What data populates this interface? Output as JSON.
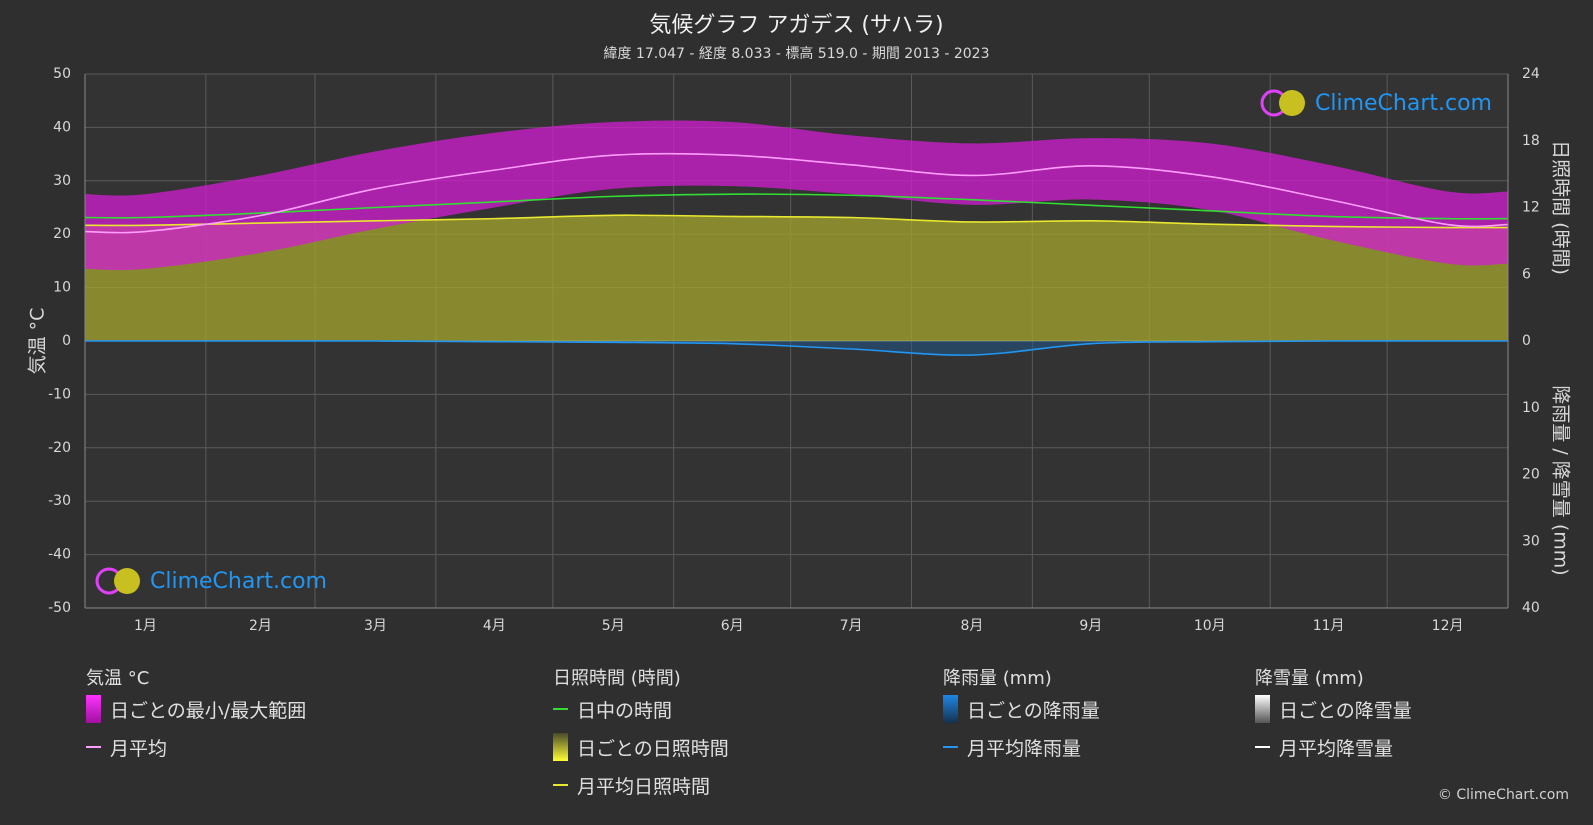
{
  "header": {
    "title": "気候グラフ アガデス (サハラ)",
    "subtitle": "緯度 17.047 - 経度 8.033 - 標高 519.0 - 期間 2013 - 2023"
  },
  "chart_data": {
    "type": "area",
    "categories": [
      "1月",
      "2月",
      "3月",
      "4月",
      "5月",
      "6月",
      "7月",
      "8月",
      "9月",
      "10月",
      "11月",
      "12月"
    ],
    "axes": {
      "left": {
        "label": "気温 °C",
        "ticks": [
          50,
          40,
          30,
          20,
          10,
          0,
          -10,
          -20,
          -30,
          -40,
          -50
        ],
        "range": [
          -50,
          50
        ]
      },
      "right_top": {
        "label": "日照時間 (時間)",
        "ticks": [
          24,
          18,
          12,
          6,
          0
        ],
        "range": [
          0,
          24
        ]
      },
      "right_bottom": {
        "label": "降雨量 / 降雪量 (mm)",
        "ticks": [
          10,
          20,
          30,
          40
        ],
        "range": [
          0,
          40
        ]
      }
    },
    "grid": true,
    "series": [
      {
        "name": "月平均",
        "axis": "left",
        "color": "#ff9eff",
        "values": [
          20.5,
          23.5,
          28.5,
          32.0,
          34.8,
          34.8,
          33.0,
          31.0,
          32.8,
          30.8,
          26.5,
          21.8
        ]
      },
      {
        "name": "日中の時間",
        "axis": "right_top",
        "color": "#33dd33",
        "values": [
          11.1,
          11.5,
          12.0,
          12.5,
          13.0,
          13.2,
          13.1,
          12.7,
          12.2,
          11.7,
          11.2,
          11.0
        ]
      },
      {
        "name": "月平均日照時間",
        "axis": "right_top",
        "color": "#e8e830",
        "values": [
          10.4,
          10.6,
          10.8,
          11.0,
          11.3,
          11.2,
          11.1,
          10.7,
          10.8,
          10.5,
          10.3,
          10.2
        ]
      },
      {
        "name": "月平均降雨量",
        "axis": "right_bottom",
        "color": "#2196f3",
        "values": [
          0.0,
          0.0,
          0.0,
          0.1,
          0.2,
          0.4,
          1.2,
          2.1,
          0.4,
          0.1,
          0.0,
          0.0
        ]
      },
      {
        "name": "月平均降雪量",
        "axis": "right_bottom",
        "color": "#ffffff",
        "values": [
          0,
          0,
          0,
          0,
          0,
          0,
          0,
          0,
          0,
          0,
          0,
          0
        ]
      },
      {
        "name": "日ごとの最小/最大範囲",
        "axis": "left",
        "color": "#d21ed2",
        "max": [
          27.5,
          31.0,
          35.5,
          39.0,
          41.0,
          41.0,
          38.5,
          37.0,
          38.0,
          37.0,
          33.0,
          28.0
        ],
        "min": [
          13.5,
          16.5,
          21.0,
          25.0,
          28.5,
          29.0,
          27.5,
          25.5,
          26.5,
          24.5,
          19.0,
          14.5
        ]
      }
    ]
  },
  "legend": {
    "temperature": {
      "heading": "気温 °C",
      "items": [
        {
          "label": "日ごとの最小/最大範囲",
          "kind": "box",
          "color": "#d21ed2"
        },
        {
          "label": "月平均",
          "kind": "line",
          "color": "#ff9eff"
        }
      ]
    },
    "sunshine": {
      "heading": "日照時間 (時間)",
      "items": [
        {
          "label": "日中の時間",
          "kind": "line",
          "color": "#33dd33"
        },
        {
          "label": "日ごとの日照時間",
          "kind": "box",
          "color": "#c8c832"
        },
        {
          "label": "月平均日照時間",
          "kind": "line",
          "color": "#e8e830"
        }
      ]
    },
    "rain": {
      "heading": "降雨量 (mm)",
      "items": [
        {
          "label": "日ごとの降雨量",
          "kind": "box",
          "color": "#1e88e5"
        },
        {
          "label": "月平均降雨量",
          "kind": "line",
          "color": "#2196f3"
        }
      ]
    },
    "snow": {
      "heading": "降雪量 (mm)",
      "items": [
        {
          "label": "日ごとの降雪量",
          "kind": "box",
          "color": "#bbbbbb"
        },
        {
          "label": "月平均降雪量",
          "kind": "line",
          "color": "#ffffff"
        }
      ]
    }
  },
  "logo": {
    "text": "ClimeChart.com"
  },
  "copyright": "© ClimeChart.com"
}
